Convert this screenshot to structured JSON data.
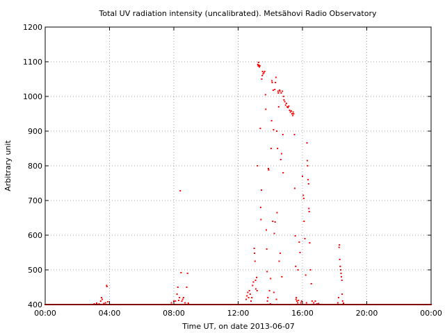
{
  "chart_data": {
    "type": "scatter",
    "title": "Total UV radiation intensity (uncalibrated). Metsähovi Radio Observatory",
    "xlabel": "Time UT, on date 2013-06-07",
    "ylabel": "Arbitrary unit",
    "xlim": [
      0,
      24
    ],
    "ylim": [
      400,
      1200
    ],
    "x_ticks": [
      {
        "value": 0,
        "label": "00:00"
      },
      {
        "value": 4,
        "label": "04:00"
      },
      {
        "value": 8,
        "label": "08:00"
      },
      {
        "value": 12,
        "label": "12:00"
      },
      {
        "value": 16,
        "label": "16:00"
      },
      {
        "value": 20,
        "label": "20:00"
      },
      {
        "value": 24,
        "label": "00:00"
      }
    ],
    "y_ticks": [
      {
        "value": 400,
        "label": "400"
      },
      {
        "value": 500,
        "label": "500"
      },
      {
        "value": 600,
        "label": "600"
      },
      {
        "value": 700,
        "label": "700"
      },
      {
        "value": 800,
        "label": "800"
      },
      {
        "value": 900,
        "label": "900"
      },
      {
        "value": 1000,
        "label": "1000"
      },
      {
        "value": 1100,
        "label": "1100"
      },
      {
        "value": 1200,
        "label": "1200"
      }
    ],
    "grid": true,
    "series_color": "#ff0000",
    "baseline": {
      "y": 400,
      "x_start": 0,
      "x_end": 24,
      "step": 0.05
    },
    "series": [
      {
        "points": [
          [
            3.05,
            402
          ],
          [
            3.2,
            404
          ],
          [
            3.35,
            402
          ],
          [
            3.45,
            410
          ],
          [
            3.5,
            420
          ],
          [
            3.55,
            415
          ],
          [
            3.65,
            403
          ],
          [
            3.75,
            405
          ],
          [
            3.82,
            455
          ],
          [
            3.84,
            452
          ],
          [
            3.9,
            408
          ],
          [
            7.85,
            405
          ],
          [
            8.0,
            410
          ],
          [
            8.1,
            410
          ],
          [
            8.2,
            430
          ],
          [
            8.25,
            450
          ],
          [
            8.3,
            412
          ],
          [
            8.35,
            420
          ],
          [
            8.4,
            728
          ],
          [
            8.45,
            492
          ],
          [
            8.5,
            410
          ],
          [
            8.55,
            415
          ],
          [
            8.6,
            420
          ],
          [
            8.7,
            405
          ],
          [
            8.8,
            450
          ],
          [
            8.85,
            490
          ],
          [
            8.9,
            404
          ],
          [
            12.5,
            415
          ],
          [
            12.55,
            425
          ],
          [
            12.6,
            435
          ],
          [
            12.65,
            420
          ],
          [
            12.7,
            440
          ],
          [
            12.75,
            430
          ],
          [
            12.8,
            410
          ],
          [
            12.85,
            420
          ],
          [
            12.9,
            455
          ],
          [
            12.95,
            465
          ],
          [
            13.0,
            562
          ],
          [
            13.02,
            548
          ],
          [
            13.05,
            525
          ],
          [
            13.08,
            470
          ],
          [
            13.1,
            445
          ],
          [
            13.15,
            478
          ],
          [
            13.18,
            440
          ],
          [
            13.2,
            800
          ],
          [
            13.22,
            1092
          ],
          [
            13.25,
            1088
          ],
          [
            13.27,
            1098
          ],
          [
            13.3,
            1090
          ],
          [
            13.32,
            1085
          ],
          [
            13.35,
            1088
          ],
          [
            13.38,
            908
          ],
          [
            13.4,
            680
          ],
          [
            13.42,
            645
          ],
          [
            13.45,
            730
          ],
          [
            13.47,
            1050
          ],
          [
            13.5,
            1060
          ],
          [
            13.52,
            1072
          ],
          [
            13.55,
            1065
          ],
          [
            13.6,
            1068
          ],
          [
            13.65,
            1072
          ],
          [
            13.7,
            1005
          ],
          [
            13.72,
            963
          ],
          [
            13.75,
            615
          ],
          [
            13.78,
            560
          ],
          [
            13.8,
            495
          ],
          [
            13.82,
            410
          ],
          [
            13.85,
            420
          ],
          [
            13.88,
            792
          ],
          [
            13.9,
            788
          ],
          [
            13.95,
            440
          ],
          [
            14.0,
            402
          ],
          [
            14.02,
            475
          ],
          [
            14.05,
            850
          ],
          [
            14.08,
            930
          ],
          [
            14.1,
            1045
          ],
          [
            14.12,
            1040
          ],
          [
            14.15,
            640
          ],
          [
            14.18,
            1018
          ],
          [
            14.2,
            904
          ],
          [
            14.22,
            435
          ],
          [
            14.25,
            605
          ],
          [
            14.28,
            1020
          ],
          [
            14.3,
            638
          ],
          [
            14.32,
            1040
          ],
          [
            14.35,
            1055
          ],
          [
            14.38,
            415
          ],
          [
            14.4,
            900
          ],
          [
            14.42,
            665
          ],
          [
            14.45,
            850
          ],
          [
            14.48,
            1015
          ],
          [
            14.5,
            1010
          ],
          [
            14.52,
            970
          ],
          [
            14.55,
            525
          ],
          [
            14.58,
            1018
          ],
          [
            14.6,
            1015
          ],
          [
            14.62,
            548
          ],
          [
            14.65,
            818
          ],
          [
            14.68,
            1010
          ],
          [
            14.7,
            835
          ],
          [
            14.72,
            480
          ],
          [
            14.75,
            1015
          ],
          [
            14.78,
            890
          ],
          [
            14.8,
            780
          ],
          [
            14.82,
            1000
          ],
          [
            14.85,
            990
          ],
          [
            14.9,
            985
          ],
          [
            14.95,
            975
          ],
          [
            15.0,
            980
          ],
          [
            15.05,
            970
          ],
          [
            15.1,
            968
          ],
          [
            15.15,
            972
          ],
          [
            15.2,
            960
          ],
          [
            15.25,
            955
          ],
          [
            15.3,
            958
          ],
          [
            15.35,
            950
          ],
          [
            15.4,
            945
          ],
          [
            15.42,
            955
          ],
          [
            15.45,
            950
          ],
          [
            15.5,
            890
          ],
          [
            15.52,
            735
          ],
          [
            15.55,
            598
          ],
          [
            15.58,
            510
          ],
          [
            15.6,
            415
          ],
          [
            15.62,
            420
          ],
          [
            15.65,
            410
          ],
          [
            15.7,
            405
          ],
          [
            15.72,
            500
          ],
          [
            15.75,
            412
          ],
          [
            15.8,
            580
          ],
          [
            15.85,
            550
          ],
          [
            15.9,
            405
          ],
          [
            15.95,
            410
          ],
          [
            16.0,
            770
          ],
          [
            16.05,
            715
          ],
          [
            16.08,
            706
          ],
          [
            16.1,
            640
          ],
          [
            16.15,
            590
          ],
          [
            16.2,
            485
          ],
          [
            16.25,
            405
          ],
          [
            16.28,
            866
          ],
          [
            16.3,
            815
          ],
          [
            16.32,
            800
          ],
          [
            16.35,
            760
          ],
          [
            16.38,
            748
          ],
          [
            16.4,
            677
          ],
          [
            16.42,
            668
          ],
          [
            16.45,
            578
          ],
          [
            16.5,
            500
          ],
          [
            16.55,
            460
          ],
          [
            16.6,
            410
          ],
          [
            16.7,
            405
          ],
          [
            16.8,
            410
          ],
          [
            16.9,
            402
          ],
          [
            17.0,
            403
          ],
          [
            18.2,
            405
          ],
          [
            18.25,
            420
          ],
          [
            18.28,
            565
          ],
          [
            18.3,
            572
          ],
          [
            18.32,
            530
          ],
          [
            18.35,
            510
          ],
          [
            18.38,
            500
          ],
          [
            18.4,
            490
          ],
          [
            18.42,
            480
          ],
          [
            18.45,
            470
          ],
          [
            18.47,
            430
          ],
          [
            18.5,
            410
          ],
          [
            18.55,
            404
          ]
        ]
      }
    ]
  }
}
